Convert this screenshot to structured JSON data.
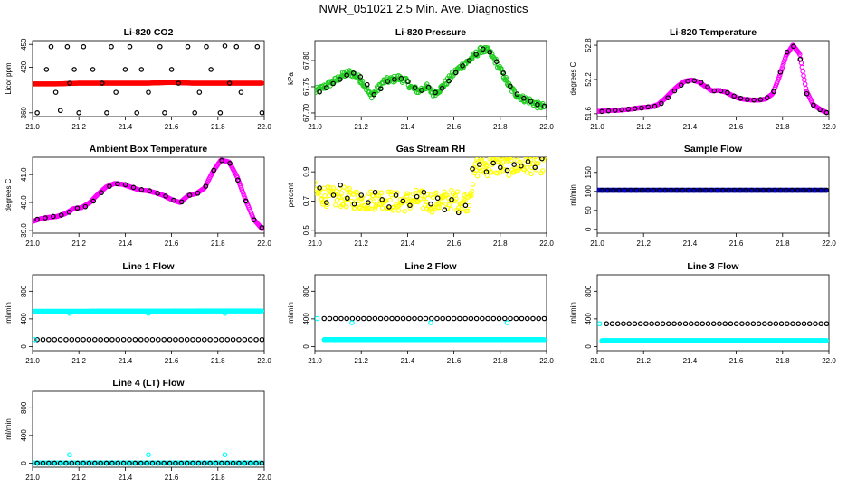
{
  "title": "NWR_051021  2.5 Min. Ave. Diagnostics",
  "x_ticks": [
    "21.0",
    "21.2",
    "21.4",
    "21.6",
    "21.8",
    "22.0"
  ],
  "colors": {
    "axis": "#000000",
    "co2": "#ff0000",
    "pressure": "#22cc22",
    "temperature": "#ff00ff",
    "rh": "#ffff00",
    "sample_flow": "#0000cc",
    "line_flow": "#00ffff",
    "average": "#000000"
  },
  "chart_data": [
    {
      "type": "scatter",
      "title": "Li-820 CO2",
      "ylabel": "Licor ppm",
      "ytick_labels": [
        "360",
        "420",
        "450"
      ],
      "ytick_values": [
        360,
        420,
        450
      ],
      "ylim": [
        355,
        455
      ],
      "xlim": [
        21.0,
        22.0
      ],
      "series": [
        {
          "name": "raw",
          "color_key": "co2",
          "style": "dense",
          "x_start": 21.0,
          "x_end": 21.99,
          "values": [
            398,
            398,
            399,
            399,
            399,
            399,
            400,
            399,
            399,
            399,
            399
          ]
        },
        {
          "name": "2.5 min ave",
          "color_key": "average",
          "style": "open",
          "x": [
            21.02,
            21.06,
            21.08,
            21.1,
            21.12,
            21.15,
            21.16,
            21.18,
            21.2,
            21.22,
            21.26,
            21.3,
            21.32,
            21.34,
            21.36,
            21.4,
            21.42,
            21.45,
            21.47,
            21.5,
            21.55,
            21.57,
            21.6,
            21.63,
            21.67,
            21.7,
            21.72,
            21.75,
            21.77,
            21.81,
            21.83,
            21.85,
            21.88,
            21.9,
            21.97,
            21.99
          ],
          "y": [
            360,
            417,
            447,
            387,
            363,
            447,
            399,
            417,
            360,
            447,
            417,
            399,
            360,
            447,
            387,
            417,
            447,
            360,
            417,
            387,
            447,
            360,
            417,
            399,
            447,
            360,
            387,
            447,
            417,
            360,
            448,
            399,
            447,
            387,
            447,
            360
          ]
        }
      ]
    },
    {
      "type": "scatter",
      "title": "Li-820 Pressure",
      "ylabel": "kPa",
      "ytick_labels": [
        "67.70",
        "67.75",
        "67.80"
      ],
      "ytick_values": [
        67.7,
        67.75,
        67.8
      ],
      "ylim": [
        67.693,
        67.838
      ],
      "xlim": [
        21.0,
        22.0
      ],
      "series": [
        {
          "name": "raw",
          "color_key": "pressure",
          "style": "dense",
          "x_start": 21.0,
          "x_end": 21.99,
          "jitter": 0.006,
          "values": [
            67.741,
            67.747,
            67.755,
            67.762,
            67.772,
            67.777,
            67.771,
            67.757,
            67.732,
            67.745,
            67.761,
            67.763,
            67.767,
            67.762,
            67.747,
            67.742,
            67.751,
            67.737,
            67.745,
            67.76,
            67.776,
            67.788,
            67.798,
            67.81,
            67.821,
            67.818,
            67.799,
            67.775,
            67.75,
            67.735,
            67.727,
            67.723,
            67.715,
            67.712
          ]
        },
        {
          "name": "2.5 min ave",
          "color_key": "average",
          "style": "open",
          "x_start": 21.02,
          "x_end": 21.99,
          "values": [
            67.74,
            67.748,
            67.756,
            67.764,
            67.772,
            67.776,
            67.769,
            67.754,
            67.735,
            67.746,
            67.76,
            67.764,
            67.766,
            67.76,
            67.748,
            67.743,
            67.749,
            67.739,
            67.747,
            67.761,
            67.777,
            67.79,
            67.8,
            67.812,
            67.822,
            67.816,
            67.798,
            67.776,
            67.751,
            67.736,
            67.728,
            67.722,
            67.716,
            67.713
          ]
        }
      ]
    },
    {
      "type": "scatter",
      "title": "Li-820 Temperature",
      "ylabel": "degrees C",
      "ytick_labels": [
        "51.6",
        "52.2",
        "52.8"
      ],
      "ytick_values": [
        51.6,
        52.2,
        52.8
      ],
      "ylim": [
        51.55,
        52.88
      ],
      "xlim": [
        21.0,
        22.0
      ],
      "series": [
        {
          "name": "raw",
          "color_key": "temperature",
          "style": "dense",
          "x_start": 21.0,
          "x_end": 21.99,
          "values": [
            51.64,
            51.65,
            51.66,
            51.66,
            51.67,
            51.68,
            51.7,
            51.71,
            51.72,
            51.76,
            51.86,
            51.98,
            52.09,
            52.17,
            52.19,
            52.16,
            52.08,
            52.0,
            52.01,
            51.98,
            51.92,
            51.87,
            51.85,
            51.84,
            51.84,
            51.86,
            51.95,
            52.25,
            52.62,
            52.8,
            52.65,
            52.0,
            51.76,
            51.68,
            51.62
          ]
        },
        {
          "name": "2.5 min ave",
          "color_key": "average",
          "style": "open",
          "x_start": 21.02,
          "x_end": 21.99,
          "values": [
            51.64,
            51.65,
            51.66,
            51.67,
            51.68,
            51.69,
            51.7,
            51.72,
            51.73,
            51.78,
            51.88,
            52.0,
            52.1,
            52.17,
            52.18,
            52.15,
            52.07,
            52.0,
            52.0,
            51.97,
            51.91,
            51.87,
            51.85,
            51.84,
            51.85,
            51.88,
            51.99,
            52.33,
            52.68,
            52.78,
            52.55,
            51.95,
            51.75,
            51.67,
            51.62
          ]
        }
      ]
    },
    {
      "type": "scatter",
      "title": "Ambient Box Temperature",
      "ylabel": "degrees C",
      "ytick_labels": [
        "39.0",
        "40.0",
        "41.0"
      ],
      "ytick_values": [
        39.0,
        40.0,
        41.0
      ],
      "ylim": [
        38.9,
        41.62
      ],
      "xlim": [
        21.0,
        22.0
      ],
      "series": [
        {
          "name": "raw",
          "color_key": "temperature",
          "style": "dense",
          "x_start": 21.0,
          "x_end": 21.99,
          "values": [
            39.32,
            39.42,
            39.47,
            39.5,
            39.6,
            39.78,
            39.82,
            40.0,
            40.3,
            40.56,
            40.68,
            40.65,
            40.55,
            40.45,
            40.42,
            40.35,
            40.25,
            40.1,
            40.0,
            40.25,
            40.32,
            40.52,
            41.1,
            41.52,
            41.45,
            40.9,
            40.1,
            39.4,
            39.06
          ]
        },
        {
          "name": "2.5 min ave",
          "color_key": "average",
          "style": "open",
          "x_start": 21.02,
          "x_end": 21.99,
          "values": [
            39.4,
            39.45,
            39.5,
            39.55,
            39.65,
            39.8,
            39.85,
            40.05,
            40.35,
            40.58,
            40.67,
            40.64,
            40.54,
            40.46,
            40.42,
            40.33,
            40.23,
            40.08,
            40.02,
            40.26,
            40.33,
            40.58,
            41.15,
            41.5,
            41.4,
            40.8,
            40.05,
            39.38,
            39.1
          ]
        }
      ]
    },
    {
      "type": "scatter",
      "title": "Gas Stream RH",
      "ylabel": "percent",
      "ytick_labels": [
        "0.5",
        "0.7",
        "0.9"
      ],
      "ytick_values": [
        0.5,
        0.7,
        0.9
      ],
      "ylim": [
        0.48,
        1.0
      ],
      "xlim": [
        21.0,
        22.0
      ],
      "series": [
        {
          "name": "raw",
          "color_key": "rh",
          "style": "dense",
          "x_start": 21.0,
          "x_end": 21.99,
          "jitter": 0.07,
          "values": [
            0.76,
            0.74,
            0.72,
            0.73,
            0.72,
            0.71,
            0.7,
            0.71,
            0.72,
            0.7,
            0.69,
            0.7,
            0.71,
            0.7,
            0.69,
            0.7,
            0.71,
            0.7,
            0.7,
            0.93,
            0.94,
            0.94,
            0.95,
            0.94,
            0.95,
            0.95,
            0.96,
            0.96
          ]
        },
        {
          "name": "2.5 min ave",
          "color_key": "average",
          "style": "open",
          "x": [
            21.02,
            21.05,
            21.08,
            21.11,
            21.14,
            21.17,
            21.2,
            21.23,
            21.26,
            21.29,
            21.32,
            21.35,
            21.38,
            21.41,
            21.44,
            21.47,
            21.5,
            21.53,
            21.56,
            21.59,
            21.62,
            21.65,
            21.68,
            21.71,
            21.74,
            21.77,
            21.8,
            21.83,
            21.86,
            21.89,
            21.92,
            21.95,
            21.98
          ],
          "y": [
            0.79,
            0.69,
            0.74,
            0.81,
            0.72,
            0.68,
            0.74,
            0.69,
            0.76,
            0.71,
            0.66,
            0.74,
            0.7,
            0.67,
            0.73,
            0.76,
            0.68,
            0.72,
            0.64,
            0.71,
            0.62,
            0.67,
            0.92,
            0.95,
            0.9,
            0.96,
            0.93,
            0.91,
            0.95,
            0.94,
            0.97,
            0.93,
            0.99
          ]
        }
      ]
    },
    {
      "type": "scatter",
      "title": "Sample Flow",
      "ylabel": "ml/min",
      "ytick_labels": [
        "0",
        "50",
        "100",
        "150"
      ],
      "ytick_values": [
        0,
        50,
        100,
        150
      ],
      "ylim": [
        -10,
        190
      ],
      "xlim": [
        21.0,
        22.0
      ],
      "series": [
        {
          "name": "raw",
          "color_key": "sample_flow",
          "style": "dense",
          "x_start": 21.0,
          "x_end": 21.99,
          "values": [
            103,
            103,
            103,
            103
          ]
        },
        {
          "name": "2.5 min ave",
          "color_key": "average",
          "style": "open",
          "x_start": 21.02,
          "x_end": 21.99,
          "values": [
            103,
            103,
            103,
            103
          ]
        }
      ]
    },
    {
      "type": "scatter",
      "title": "Line 1 Flow",
      "ylabel": "ml/min",
      "ytick_labels": [
        "0",
        "400",
        "800"
      ],
      "ytick_values": [
        0,
        400,
        800
      ],
      "ylim": [
        -60,
        1040
      ],
      "xlim": [
        21.0,
        22.0
      ],
      "series": [
        {
          "name": "flow",
          "color_key": "line_flow",
          "style": "dense",
          "x_start": 21.0,
          "x_end": 21.99,
          "values": [
            510,
            510,
            512,
            512,
            515,
            515
          ]
        },
        {
          "name": "2.5 min ave",
          "color_key": "average",
          "style": "open",
          "x_start": 21.02,
          "x_end": 21.99,
          "values": [
            100,
            100,
            100
          ]
        },
        {
          "name": "outliers",
          "color_key": "line_flow",
          "style": "open",
          "x": [
            21.01,
            21.16,
            21.5,
            21.83
          ],
          "y": [
            100,
            480,
            480,
            480
          ]
        }
      ]
    },
    {
      "type": "scatter",
      "title": "Line 2 Flow",
      "ylabel": "ml/min",
      "ytick_labels": [
        "0",
        "400",
        "800"
      ],
      "ytick_values": [
        0,
        400,
        800
      ],
      "ylim": [
        -60,
        1040
      ],
      "xlim": [
        21.0,
        22.0
      ],
      "series": [
        {
          "name": "flow",
          "color_key": "line_flow",
          "style": "dense",
          "x_start": 21.04,
          "x_end": 21.99,
          "values": [
            100,
            100,
            100
          ]
        },
        {
          "name": "2.5 min ave",
          "color_key": "average",
          "style": "open",
          "x_start": 21.04,
          "x_end": 21.99,
          "values": [
            405,
            405,
            405
          ]
        },
        {
          "name": "outliers",
          "color_key": "line_flow",
          "style": "open",
          "x": [
            21.01,
            21.16,
            21.5,
            21.83
          ],
          "y": [
            405,
            345,
            345,
            345
          ]
        }
      ]
    },
    {
      "type": "scatter",
      "title": "Line 3 Flow",
      "ylabel": "ml/min",
      "ytick_labels": [
        "0",
        "400",
        "800"
      ],
      "ytick_values": [
        0,
        400,
        800
      ],
      "ylim": [
        -60,
        1040
      ],
      "xlim": [
        21.0,
        22.0
      ],
      "series": [
        {
          "name": "flow",
          "color_key": "line_flow",
          "style": "dense",
          "x_start": 21.02,
          "x_end": 21.99,
          "values": [
            85,
            85,
            85
          ]
        },
        {
          "name": "2.5 min ave",
          "color_key": "average",
          "style": "open",
          "x_start": 21.04,
          "x_end": 21.99,
          "values": [
            330,
            330,
            330
          ]
        },
        {
          "name": "outliers",
          "color_key": "line_flow",
          "style": "open",
          "x": [
            21.01
          ],
          "y": [
            330
          ]
        }
      ]
    },
    {
      "type": "scatter",
      "title": "Line 4 (LT) Flow",
      "ylabel": "ml/min",
      "ytick_labels": [
        "0",
        "400",
        "800"
      ],
      "ytick_values": [
        0,
        400,
        800
      ],
      "ylim": [
        -60,
        1040
      ],
      "xlim": [
        21.0,
        22.0
      ],
      "series": [
        {
          "name": "flow",
          "color_key": "line_flow",
          "style": "dense",
          "x_start": 21.0,
          "x_end": 21.99,
          "values": [
            0,
            0,
            0
          ]
        },
        {
          "name": "2.5 min ave",
          "color_key": "average",
          "style": "open",
          "x_start": 21.02,
          "x_end": 21.99,
          "values": [
            0,
            0,
            0
          ]
        },
        {
          "name": "outliers",
          "color_key": "line_flow",
          "style": "open",
          "x": [
            21.16,
            21.5,
            21.83
          ],
          "y": [
            120,
            120,
            120
          ]
        }
      ]
    }
  ]
}
